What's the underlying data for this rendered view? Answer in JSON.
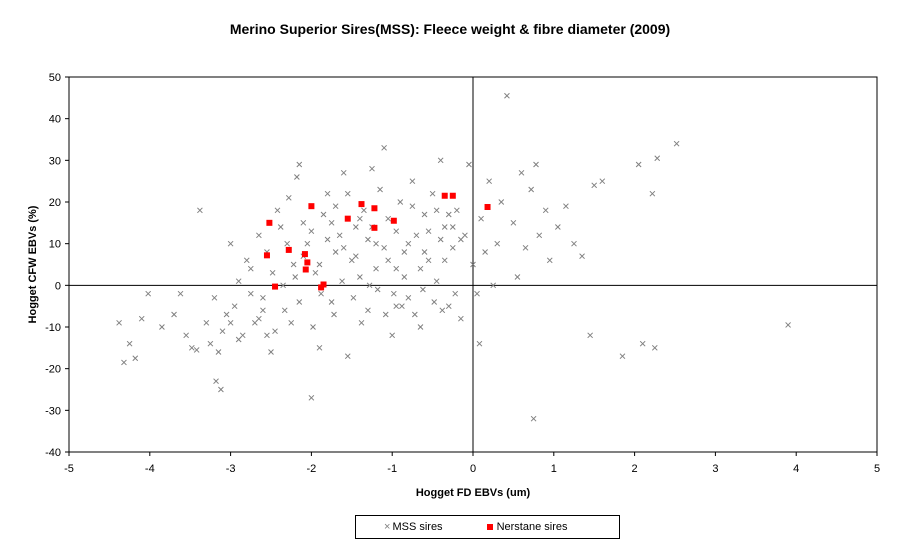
{
  "chart_data": {
    "type": "scatter",
    "title": "Merino Superior Sires(MSS): Fleece weight & fibre diameter (2009)",
    "xlabel": "Hogget FD EBVs (um)",
    "ylabel": "Hogget CFW EBVs (%)",
    "xlim": [
      -5,
      5
    ],
    "ylim": [
      -40,
      50
    ],
    "xticks": [
      "-5",
      "-4",
      "-3",
      "-2",
      "-1",
      "0",
      "1",
      "2",
      "3",
      "4",
      "5"
    ],
    "yticks": [
      "50",
      "40",
      "30",
      "20",
      "10",
      "0",
      "-10",
      "-20",
      "-30",
      "-40"
    ],
    "grid": false,
    "legend_position": "bottom",
    "series": [
      {
        "name": "MSS sires",
        "marker": "x",
        "color": "#808080",
        "points": [
          [
            -4.38,
            -9
          ],
          [
            -4.32,
            -18.5
          ],
          [
            -4.25,
            -14
          ],
          [
            -4.18,
            -17.5
          ],
          [
            -4.1,
            -8
          ],
          [
            -4.02,
            -2
          ],
          [
            -3.85,
            -10
          ],
          [
            -3.7,
            -7
          ],
          [
            -3.62,
            -2
          ],
          [
            -3.55,
            -12
          ],
          [
            -3.48,
            -15
          ],
          [
            -3.42,
            -15.5
          ],
          [
            -3.38,
            18
          ],
          [
            -3.3,
            -9
          ],
          [
            -3.25,
            -14
          ],
          [
            -3.2,
            -3
          ],
          [
            -3.15,
            -16
          ],
          [
            -3.1,
            -11
          ],
          [
            -3.05,
            -7
          ],
          [
            -3.0,
            10
          ],
          [
            -2.95,
            -5
          ],
          [
            -2.9,
            1
          ],
          [
            -2.85,
            -12
          ],
          [
            -2.8,
            6
          ],
          [
            -2.75,
            4
          ],
          [
            -2.7,
            -9
          ],
          [
            -2.65,
            12
          ],
          [
            -2.6,
            -3
          ],
          [
            -2.55,
            8
          ],
          [
            -2.5,
            -16
          ],
          [
            -3.18,
            -23
          ],
          [
            -3.12,
            -25
          ],
          [
            -2.42,
            18
          ],
          [
            -2.38,
            14
          ],
          [
            -2.33,
            -6
          ],
          [
            -2.28,
            21
          ],
          [
            -2.22,
            5
          ],
          [
            -2.18,
            26
          ],
          [
            -2.15,
            29
          ],
          [
            -2.1,
            15
          ],
          [
            -2.05,
            10
          ],
          [
            -2.0,
            -27
          ],
          [
            -1.95,
            3
          ],
          [
            -1.9,
            -15
          ],
          [
            -1.85,
            17
          ],
          [
            -1.8,
            22
          ],
          [
            -1.75,
            -4
          ],
          [
            -1.7,
            8
          ],
          [
            -1.65,
            12
          ],
          [
            -1.6,
            27
          ],
          [
            -1.55,
            -17
          ],
          [
            -1.5,
            6
          ],
          [
            -1.45,
            14
          ],
          [
            -1.4,
            2
          ],
          [
            -1.35,
            18
          ],
          [
            -1.3,
            -6
          ],
          [
            -1.25,
            28
          ],
          [
            -1.2,
            10
          ],
          [
            -1.15,
            23
          ],
          [
            -1.1,
            33
          ],
          [
            -1.05,
            16
          ],
          [
            -1.0,
            -12
          ],
          [
            -0.95,
            4
          ],
          [
            -0.9,
            20
          ],
          [
            -0.85,
            8
          ],
          [
            -0.8,
            -3
          ],
          [
            -0.75,
            25
          ],
          [
            -0.7,
            12
          ],
          [
            -0.65,
            -10
          ],
          [
            -0.6,
            17
          ],
          [
            -0.55,
            6
          ],
          [
            -0.5,
            22
          ],
          [
            -0.45,
            1
          ],
          [
            -0.4,
            30
          ],
          [
            -0.35,
            14
          ],
          [
            -0.3,
            -5
          ],
          [
            -0.25,
            9
          ],
          [
            -0.2,
            18
          ],
          [
            -0.15,
            -8
          ],
          [
            -0.1,
            12
          ],
          [
            -0.05,
            29
          ],
          [
            0.0,
            5
          ],
          [
            0.05,
            -2
          ],
          [
            0.1,
            16
          ],
          [
            0.15,
            8
          ],
          [
            0.2,
            25
          ],
          [
            0.25,
            0
          ],
          [
            0.3,
            10
          ],
          [
            0.35,
            20
          ],
          [
            0.42,
            45.5
          ],
          [
            0.5,
            15
          ],
          [
            0.55,
            2
          ],
          [
            0.6,
            27
          ],
          [
            0.65,
            9
          ],
          [
            0.72,
            23
          ],
          [
            0.78,
            29
          ],
          [
            0.82,
            12
          ],
          [
            0.9,
            18
          ],
          [
            0.95,
            6
          ],
          [
            1.05,
            14
          ],
          [
            1.15,
            19
          ],
          [
            1.25,
            10
          ],
          [
            1.35,
            7
          ],
          [
            1.45,
            -12
          ],
          [
            1.5,
            24
          ],
          [
            1.6,
            25
          ],
          [
            1.85,
            -17
          ],
          [
            2.05,
            29
          ],
          [
            2.1,
            -14
          ],
          [
            2.22,
            22
          ],
          [
            2.25,
            -15
          ],
          [
            2.28,
            30.5
          ],
          [
            2.52,
            34
          ],
          [
            3.9,
            -9.5
          ],
          [
            0.08,
            -14
          ],
          [
            0.75,
            -32
          ],
          [
            -1.75,
            15
          ],
          [
            -1.6,
            9
          ],
          [
            -1.45,
            7
          ],
          [
            -1.3,
            11
          ],
          [
            -1.2,
            4
          ],
          [
            -1.1,
            9
          ],
          [
            -0.95,
            13
          ],
          [
            -0.85,
            2
          ],
          [
            -0.75,
            19
          ],
          [
            -0.65,
            4
          ],
          [
            -0.55,
            13
          ],
          [
            -0.45,
            18
          ],
          [
            -0.35,
            6
          ],
          [
            -0.25,
            14
          ],
          [
            -0.15,
            11
          ],
          [
            -2.3,
            10
          ],
          [
            -2.2,
            2
          ],
          [
            -2.1,
            7
          ],
          [
            -2.0,
            13
          ],
          [
            -1.9,
            5
          ],
          [
            -1.8,
            11
          ],
          [
            -1.7,
            19
          ],
          [
            -1.55,
            22
          ],
          [
            -1.4,
            16
          ],
          [
            -1.25,
            14
          ],
          [
            -1.05,
            6
          ],
          [
            -0.95,
            -5
          ],
          [
            -0.8,
            10
          ],
          [
            -0.6,
            8
          ],
          [
            -0.4,
            11
          ],
          [
            -0.3,
            17
          ],
          [
            -2.6,
            -6
          ],
          [
            -2.45,
            -11
          ],
          [
            -2.35,
            0
          ],
          [
            -2.25,
            -9
          ],
          [
            -2.15,
            -4
          ],
          [
            -1.98,
            -10
          ],
          [
            -1.88,
            -2
          ],
          [
            -1.72,
            -7
          ],
          [
            -1.62,
            1
          ],
          [
            -1.48,
            -3
          ],
          [
            -1.38,
            -9
          ],
          [
            -1.28,
            0
          ],
          [
            -1.18,
            -1
          ],
          [
            -1.08,
            -7
          ],
          [
            -0.98,
            -2
          ],
          [
            -0.88,
            -5
          ],
          [
            -0.72,
            -7
          ],
          [
            -0.62,
            -1
          ],
          [
            -0.48,
            -4
          ],
          [
            -0.38,
            -6
          ],
          [
            -0.22,
            -2
          ],
          [
            -3.0,
            -9
          ],
          [
            -2.9,
            -13
          ],
          [
            -2.75,
            -2
          ],
          [
            -2.65,
            -8
          ],
          [
            -2.55,
            -12
          ],
          [
            -2.48,
            3
          ]
        ]
      },
      {
        "name": "Nerstane sires",
        "marker": "square",
        "color": "#ff0000",
        "points": [
          [
            -2.52,
            15
          ],
          [
            -2.55,
            7.2
          ],
          [
            -2.45,
            -0.3
          ],
          [
            -2.28,
            8.5
          ],
          [
            -2.08,
            7.5
          ],
          [
            -2.05,
            5.5
          ],
          [
            -2.07,
            3.8
          ],
          [
            -2.0,
            19
          ],
          [
            -1.88,
            -0.5
          ],
          [
            -1.85,
            0.2
          ],
          [
            -1.55,
            16
          ],
          [
            -1.38,
            19.5
          ],
          [
            -1.22,
            18.5
          ],
          [
            -1.22,
            13.8
          ],
          [
            -0.98,
            15.5
          ],
          [
            -0.35,
            21.5
          ],
          [
            -0.25,
            21.5
          ],
          [
            0.18,
            18.8
          ]
        ]
      }
    ]
  },
  "legend": {
    "mss_label": "MSS sires",
    "nerstane_label": "Nerstane sires"
  }
}
